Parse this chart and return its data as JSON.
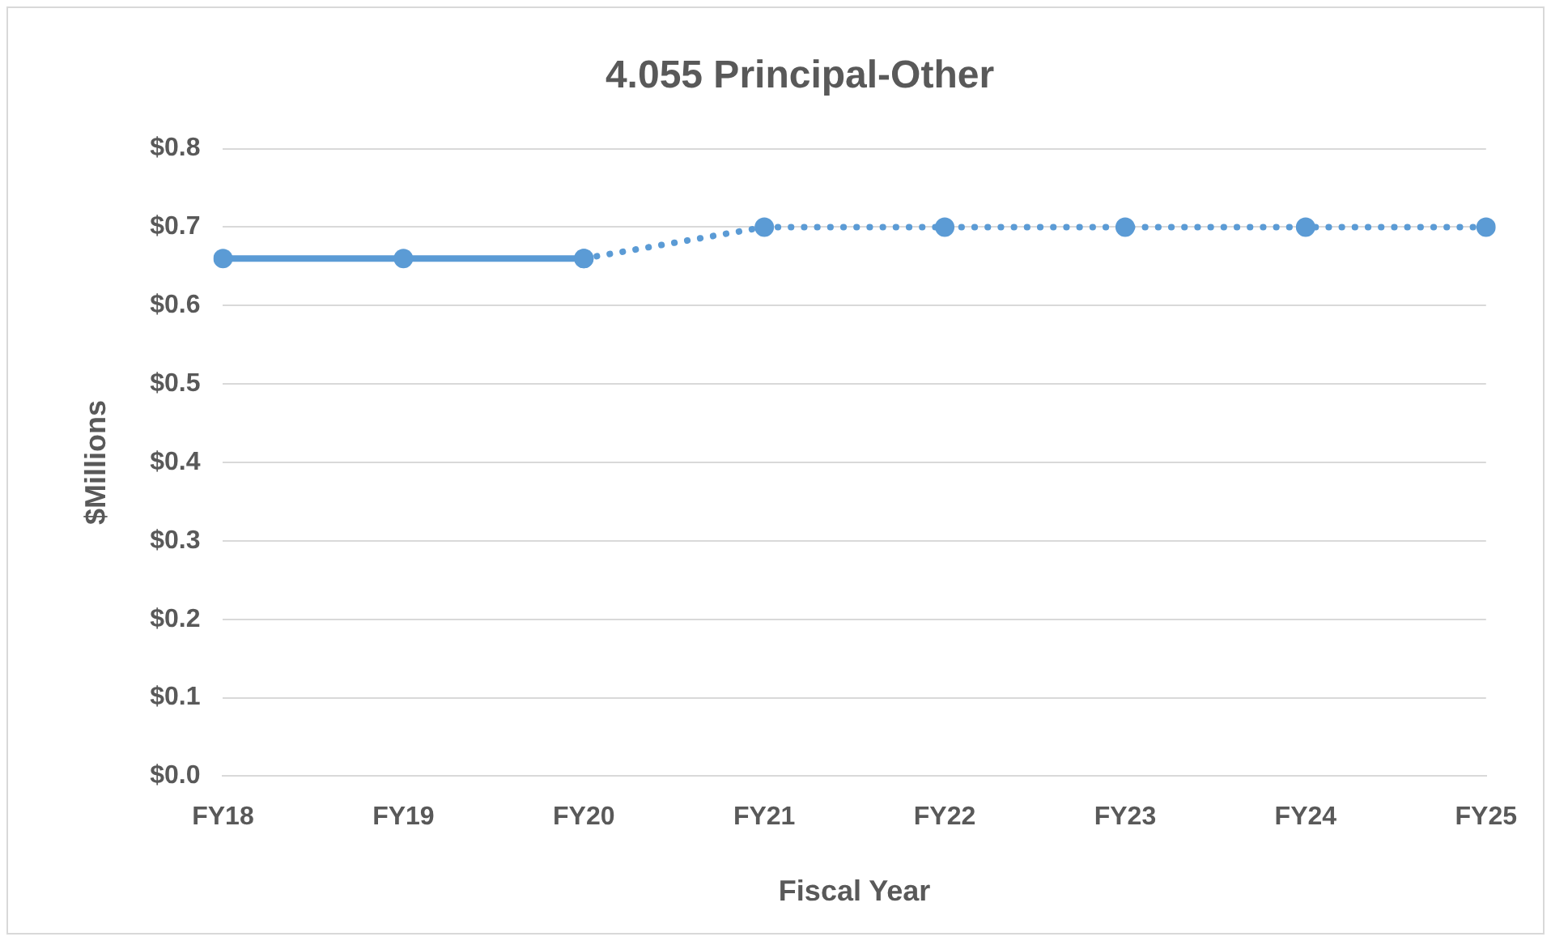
{
  "chart_data": {
    "type": "line",
    "title": "4.055 Principal-Other",
    "xlabel": "Fiscal Year",
    "ylabel": "$Millions",
    "categories": [
      "FY18",
      "FY19",
      "FY20",
      "FY21",
      "FY22",
      "FY23",
      "FY24",
      "FY25"
    ],
    "series": [
      {
        "color": "#5b9bd5",
        "line_style": "solid",
        "values": [
          0.66,
          0.66,
          0.66,
          null,
          null,
          null,
          null,
          null
        ]
      },
      {
        "color": "#5b9bd5",
        "line_style": "dotted",
        "values": [
          null,
          null,
          0.66,
          0.7,
          0.7,
          0.7,
          0.7,
          0.7
        ]
      }
    ],
    "ylim": [
      0,
      0.8
    ],
    "yticks": [
      {
        "value": 0,
        "label": "$0.0"
      },
      {
        "value": 0.1,
        "label": "$0.1"
      },
      {
        "value": 0.2,
        "label": "$0.2"
      },
      {
        "value": 0.3,
        "label": "$0.3"
      },
      {
        "value": 0.4,
        "label": "$0.4"
      },
      {
        "value": 0.5,
        "label": "$0.5"
      },
      {
        "value": 0.6,
        "label": "$0.6"
      },
      {
        "value": 0.7,
        "label": "$0.7"
      },
      {
        "value": 0.8,
        "label": "$0.8"
      }
    ],
    "grid": "y",
    "marker": "circle"
  }
}
